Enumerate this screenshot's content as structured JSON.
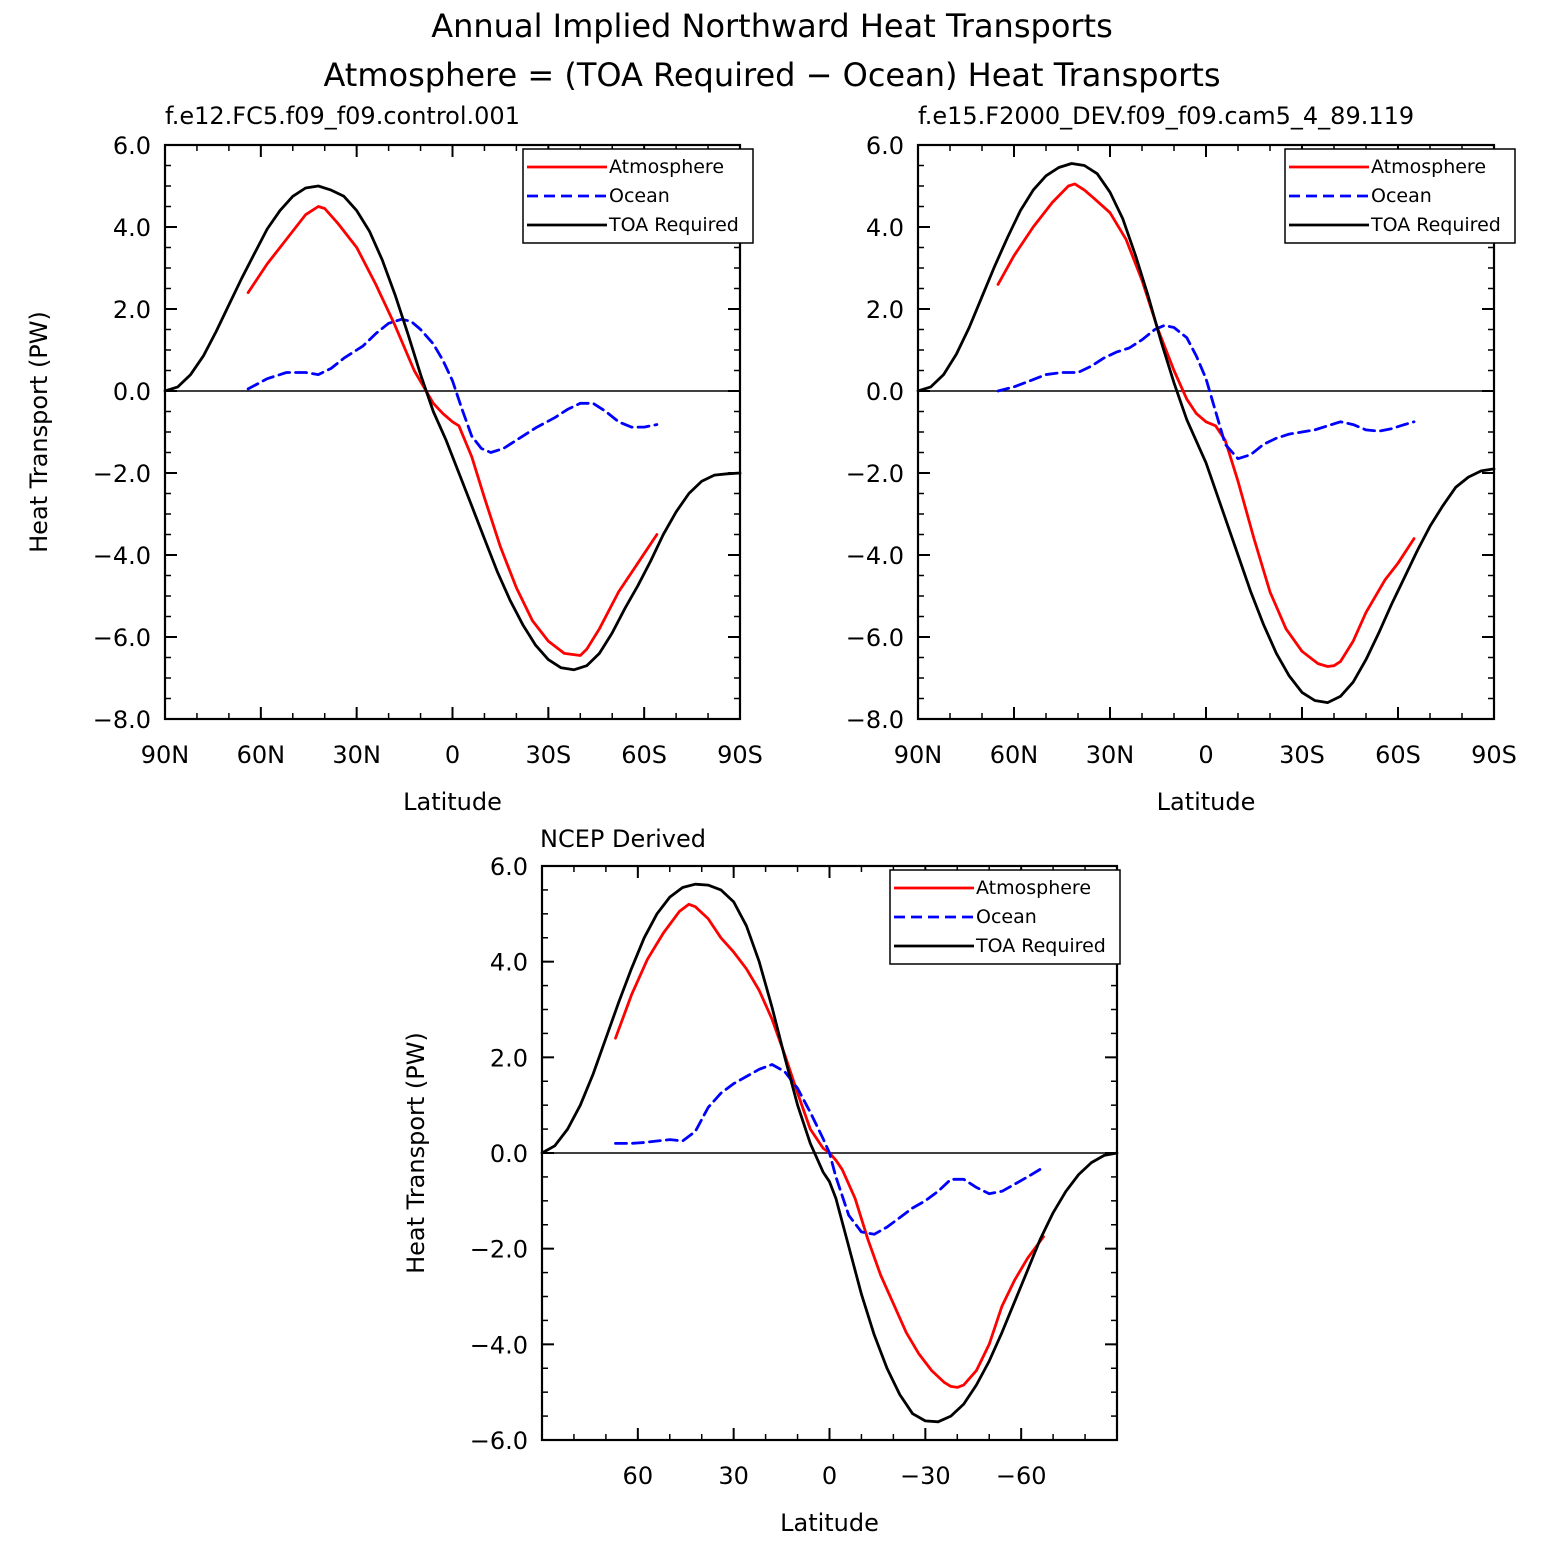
{
  "title": "Annual Implied Northward Heat Transports",
  "subtitle": "Atmosphere = (TOA Required − Ocean) Heat Transports",
  "colors": {
    "atmosphere": "#ff0000",
    "ocean": "#0000ff",
    "toa": "#000000"
  },
  "chart_data": [
    {
      "type": "line",
      "title": "f.e12.FC5.f09_f09.control.001",
      "xlabel": "Latitude",
      "ylabel": "Heat Transport (PW)",
      "xlim": [
        90,
        -90
      ],
      "ylim": [
        -8,
        6
      ],
      "xticks": [
        90,
        60,
        30,
        0,
        -30,
        -60,
        -90
      ],
      "xtick_labels": [
        "90N",
        "60N",
        "30N",
        "0",
        "30S",
        "60S",
        "90S"
      ],
      "yticks": [
        6,
        4,
        2,
        0,
        -2,
        -4,
        -6,
        -8
      ],
      "ytick_labels": [
        "6.0",
        "4.0",
        "2.0",
        "0.0",
        "−2.0",
        "−4.0",
        "−6.0",
        "−8.0"
      ],
      "legend": [
        "Atmosphere",
        "Ocean",
        "TOA Required"
      ],
      "series": [
        {
          "name": "Atmosphere",
          "x": [
            64,
            58,
            52,
            46,
            42,
            40,
            36,
            30,
            24,
            18,
            12,
            6,
            3,
            0,
            -2,
            -6,
            -10,
            -15,
            -20,
            -25,
            -30,
            -35,
            -40,
            -42,
            -46,
            -52,
            -58,
            -64
          ],
          "y": [
            2.4,
            3.1,
            3.7,
            4.3,
            4.5,
            4.45,
            4.1,
            3.5,
            2.6,
            1.6,
            0.5,
            -0.3,
            -0.55,
            -0.75,
            -0.85,
            -1.6,
            -2.6,
            -3.8,
            -4.8,
            -5.6,
            -6.1,
            -6.4,
            -6.45,
            -6.3,
            -5.8,
            -4.9,
            -4.2,
            -3.5
          ]
        },
        {
          "name": "Ocean",
          "x": [
            64,
            58,
            52,
            46,
            42,
            38,
            34,
            28,
            24,
            20,
            16,
            13,
            10,
            6,
            3,
            0,
            -3,
            -6,
            -9,
            -12,
            -16,
            -20,
            -26,
            -32,
            -36,
            -40,
            -44,
            -48,
            -52,
            -56,
            -60,
            -64
          ],
          "y": [
            0.05,
            0.3,
            0.45,
            0.45,
            0.4,
            0.55,
            0.8,
            1.1,
            1.4,
            1.65,
            1.75,
            1.7,
            1.5,
            1.15,
            0.75,
            0.25,
            -0.45,
            -1.1,
            -1.4,
            -1.5,
            -1.4,
            -1.2,
            -0.9,
            -0.65,
            -0.45,
            -0.3,
            -0.3,
            -0.5,
            -0.75,
            -0.88,
            -0.88,
            -0.82
          ]
        },
        {
          "name": "TOA Required",
          "x": [
            90,
            86,
            82,
            78,
            74,
            70,
            66,
            62,
            58,
            54,
            50,
            46,
            42,
            38,
            34,
            30,
            26,
            22,
            18,
            14,
            10,
            6,
            2,
            0,
            -2,
            -6,
            -10,
            -14,
            -18,
            -22,
            -26,
            -30,
            -34,
            -38,
            -42,
            -46,
            -50,
            -54,
            -58,
            -62,
            -66,
            -70,
            -74,
            -78,
            -82,
            -86,
            -90
          ],
          "y": [
            0,
            0.1,
            0.4,
            0.85,
            1.45,
            2.1,
            2.75,
            3.35,
            3.95,
            4.4,
            4.75,
            4.95,
            5.0,
            4.9,
            4.75,
            4.4,
            3.9,
            3.2,
            2.35,
            1.4,
            0.4,
            -0.5,
            -1.2,
            -1.6,
            -2.0,
            -2.8,
            -3.6,
            -4.4,
            -5.1,
            -5.7,
            -6.2,
            -6.55,
            -6.75,
            -6.8,
            -6.7,
            -6.4,
            -5.9,
            -5.3,
            -4.75,
            -4.15,
            -3.5,
            -2.95,
            -2.5,
            -2.2,
            -2.05,
            -2.02,
            -2.0
          ]
        }
      ]
    },
    {
      "type": "line",
      "title": "f.e15.F2000_DEV.f09_f09.cam5_4_89.119",
      "xlabel": "Latitude",
      "ylabel": "",
      "xlim": [
        90,
        -90
      ],
      "ylim": [
        -8,
        6
      ],
      "xticks": [
        90,
        60,
        30,
        0,
        -30,
        -60,
        -90
      ],
      "xtick_labels": [
        "90N",
        "60N",
        "30N",
        "0",
        "30S",
        "60S",
        "90S"
      ],
      "yticks": [
        6,
        4,
        2,
        0,
        -2,
        -4,
        -6,
        -8
      ],
      "ytick_labels": [
        "6.0",
        "4.0",
        "2.0",
        "0.0",
        "−2.0",
        "−4.0",
        "−6.0",
        "−8.0"
      ],
      "legend": [
        "Atmosphere",
        "Ocean",
        "TOA Required"
      ],
      "series": [
        {
          "name": "Atmosphere",
          "x": [
            65,
            60,
            54,
            48,
            43,
            41,
            38,
            35,
            30,
            25,
            20,
            15,
            10,
            6,
            3,
            0,
            -3,
            -6,
            -10,
            -15,
            -20,
            -25,
            -30,
            -35,
            -38,
            -40,
            -42,
            -46,
            -50,
            -56,
            -60,
            -65
          ],
          "y": [
            2.6,
            3.3,
            4.0,
            4.6,
            5.0,
            5.05,
            4.9,
            4.7,
            4.35,
            3.7,
            2.7,
            1.5,
            0.5,
            -0.2,
            -0.55,
            -0.75,
            -0.85,
            -1.2,
            -2.2,
            -3.6,
            -4.9,
            -5.8,
            -6.35,
            -6.65,
            -6.72,
            -6.7,
            -6.6,
            -6.1,
            -5.4,
            -4.6,
            -4.2,
            -3.6
          ]
        },
        {
          "name": "Ocean",
          "x": [
            65,
            60,
            55,
            50,
            45,
            40,
            36,
            32,
            28,
            24,
            20,
            16,
            13,
            10,
            6,
            3,
            0,
            -3,
            -6,
            -10,
            -14,
            -18,
            -22,
            -26,
            -30,
            -34,
            -38,
            -42,
            -46,
            -50,
            -54,
            -58,
            -62,
            -65
          ],
          "y": [
            0.0,
            0.1,
            0.25,
            0.4,
            0.45,
            0.45,
            0.6,
            0.8,
            0.95,
            1.05,
            1.25,
            1.5,
            1.6,
            1.55,
            1.3,
            0.85,
            0.3,
            -0.5,
            -1.3,
            -1.65,
            -1.55,
            -1.3,
            -1.15,
            -1.05,
            -1.0,
            -0.95,
            -0.85,
            -0.75,
            -0.82,
            -0.95,
            -0.98,
            -0.92,
            -0.82,
            -0.75
          ]
        },
        {
          "name": "TOA Required",
          "x": [
            90,
            86,
            82,
            78,
            74,
            70,
            66,
            62,
            58,
            54,
            50,
            46,
            42,
            38,
            34,
            30,
            26,
            22,
            18,
            14,
            10,
            6,
            2,
            0,
            -2,
            -6,
            -10,
            -14,
            -18,
            -22,
            -26,
            -30,
            -34,
            -38,
            -42,
            -46,
            -50,
            -54,
            -58,
            -62,
            -66,
            -70,
            -74,
            -78,
            -82,
            -86,
            -90
          ],
          "y": [
            0,
            0.1,
            0.4,
            0.9,
            1.55,
            2.3,
            3.05,
            3.75,
            4.4,
            4.9,
            5.25,
            5.45,
            5.55,
            5.5,
            5.3,
            4.85,
            4.2,
            3.3,
            2.3,
            1.2,
            0.2,
            -0.7,
            -1.4,
            -1.75,
            -2.2,
            -3.1,
            -4.0,
            -4.9,
            -5.7,
            -6.4,
            -6.95,
            -7.35,
            -7.55,
            -7.6,
            -7.45,
            -7.1,
            -6.55,
            -5.9,
            -5.2,
            -4.55,
            -3.9,
            -3.3,
            -2.8,
            -2.35,
            -2.1,
            -1.95,
            -1.9
          ]
        }
      ]
    },
    {
      "type": "line",
      "title": "NCEP Derived",
      "xlabel": "Latitude",
      "ylabel": "Heat Transport (PW)",
      "xlim": [
        90,
        -90
      ],
      "ylim": [
        -6,
        6
      ],
      "xticks": [
        60,
        30,
        0,
        -30,
        -60
      ],
      "xtick_labels": [
        "60",
        "30",
        "0",
        "−30",
        "−60"
      ],
      "yticks": [
        6,
        4,
        2,
        0,
        -2,
        -4,
        -6
      ],
      "ytick_labels": [
        "6.0",
        "4.0",
        "2.0",
        "0.0",
        "−2.0",
        "−4.0",
        "−6.0"
      ],
      "legend": [
        "Atmosphere",
        "Ocean",
        "TOA Required"
      ],
      "series": [
        {
          "name": "Atmosphere",
          "x": [
            67,
            62,
            57,
            52,
            47,
            44,
            42,
            38,
            34,
            30,
            26,
            22,
            18,
            14,
            10,
            6,
            2,
            0,
            -2,
            -4,
            -8,
            -12,
            -16,
            -20,
            -24,
            -28,
            -32,
            -36,
            -38,
            -40,
            -42,
            -46,
            -50,
            -54,
            -58,
            -62,
            -67
          ],
          "y": [
            2.4,
            3.3,
            4.05,
            4.6,
            5.05,
            5.2,
            5.15,
            4.9,
            4.5,
            4.2,
            3.85,
            3.4,
            2.8,
            2.05,
            1.25,
            0.5,
            0.1,
            0.0,
            -0.15,
            -0.35,
            -0.95,
            -1.8,
            -2.55,
            -3.15,
            -3.75,
            -4.2,
            -4.55,
            -4.8,
            -4.88,
            -4.9,
            -4.85,
            -4.55,
            -4.0,
            -3.2,
            -2.65,
            -2.2,
            -1.75
          ]
        },
        {
          "name": "Ocean",
          "x": [
            67,
            62,
            58,
            54,
            50,
            46,
            42,
            38,
            34,
            30,
            26,
            22,
            18,
            14,
            10,
            6,
            2,
            0,
            -2,
            -6,
            -10,
            -14,
            -18,
            -22,
            -26,
            -30,
            -34,
            -38,
            -42,
            -46,
            -50,
            -54,
            -58,
            -62,
            -67
          ],
          "y": [
            0.2,
            0.2,
            0.22,
            0.25,
            0.28,
            0.25,
            0.45,
            0.95,
            1.25,
            1.45,
            1.6,
            1.75,
            1.85,
            1.7,
            1.35,
            0.85,
            0.3,
            0.0,
            -0.5,
            -1.3,
            -1.65,
            -1.7,
            -1.55,
            -1.35,
            -1.15,
            -1.0,
            -0.8,
            -0.55,
            -0.55,
            -0.72,
            -0.85,
            -0.8,
            -0.65,
            -0.5,
            -0.3
          ]
        },
        {
          "name": "TOA Required",
          "x": [
            90,
            86,
            82,
            78,
            74,
            70,
            66,
            62,
            58,
            54,
            50,
            46,
            42,
            38,
            34,
            30,
            26,
            22,
            18,
            14,
            10,
            6,
            2,
            0,
            -2,
            -6,
            -10,
            -14,
            -18,
            -22,
            -26,
            -30,
            -34,
            -38,
            -42,
            -46,
            -50,
            -54,
            -58,
            -62,
            -66,
            -70,
            -74,
            -78,
            -82,
            -86,
            -90
          ],
          "y": [
            0,
            0.15,
            0.5,
            1.0,
            1.65,
            2.4,
            3.15,
            3.85,
            4.5,
            5.0,
            5.35,
            5.55,
            5.62,
            5.6,
            5.5,
            5.25,
            4.75,
            4.0,
            3.05,
            2.0,
            1.0,
            0.2,
            -0.4,
            -0.6,
            -0.95,
            -1.95,
            -2.95,
            -3.8,
            -4.5,
            -5.05,
            -5.45,
            -5.6,
            -5.62,
            -5.5,
            -5.25,
            -4.85,
            -4.35,
            -3.75,
            -3.1,
            -2.45,
            -1.8,
            -1.25,
            -0.8,
            -0.45,
            -0.2,
            -0.05,
            0.0
          ]
        }
      ]
    }
  ]
}
